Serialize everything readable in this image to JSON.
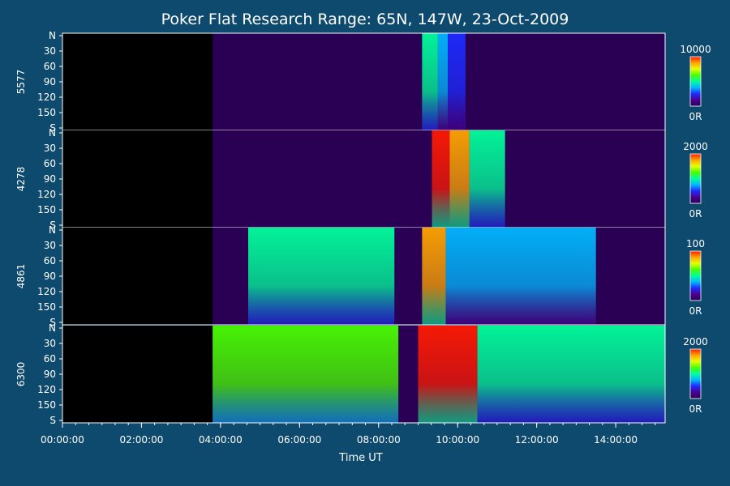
{
  "chart_data": {
    "type": "heatmap",
    "title": "Poker Flat Research Range: 65N, 147W, 23-Oct-2009",
    "xlabel": "Time UT",
    "x_ticks": [
      "00:00:00",
      "02:00:00",
      "04:00:00",
      "06:00:00",
      "08:00:00",
      "10:00:00",
      "12:00:00",
      "14:00:00"
    ],
    "xlim_hours": [
      0,
      15.25
    ],
    "y_ticks": [
      "N",
      "30",
      "60",
      "90",
      "120",
      "150",
      "S"
    ],
    "colorbar_min_label": "0R",
    "colormap": [
      "#000000",
      "#2a0054",
      "#4b0090",
      "#1d2bff",
      "#00b8ff",
      "#00ff9c",
      "#48ff00",
      "#e6ff00",
      "#ffa500",
      "#ff1a00"
    ],
    "data_start_hour": 3.8,
    "panels": [
      {
        "ylabel": "5577",
        "colorbar_max": "10000",
        "events": [
          {
            "t0": 9.1,
            "t1": 9.5,
            "intensity": 0.55
          },
          {
            "t0": 9.5,
            "t1": 9.75,
            "intensity": 0.45
          },
          {
            "t0": 9.75,
            "t1": 10.2,
            "intensity": 0.38
          }
        ]
      },
      {
        "ylabel": "4278",
        "colorbar_max": "2000",
        "events": [
          {
            "t0": 9.35,
            "t1": 9.8,
            "intensity": 1.0
          },
          {
            "t0": 9.8,
            "t1": 10.3,
            "intensity": 0.85
          },
          {
            "t0": 10.3,
            "t1": 11.2,
            "intensity": 0.6
          }
        ]
      },
      {
        "ylabel": "4861",
        "colorbar_max": "100",
        "events": [
          {
            "t0": 4.7,
            "t1": 8.4,
            "intensity": 0.5
          },
          {
            "t0": 9.1,
            "t1": 9.7,
            "intensity": 0.9
          },
          {
            "t0": 9.7,
            "t1": 13.5,
            "intensity": 0.4
          }
        ]
      },
      {
        "ylabel": "6300",
        "colorbar_max": "2000",
        "events": [
          {
            "t0": 3.8,
            "t1": 8.5,
            "intensity": 0.7
          },
          {
            "t0": 9.0,
            "t1": 10.5,
            "intensity": 1.0
          },
          {
            "t0": 10.5,
            "t1": 15.25,
            "intensity": 0.6
          }
        ]
      }
    ]
  }
}
